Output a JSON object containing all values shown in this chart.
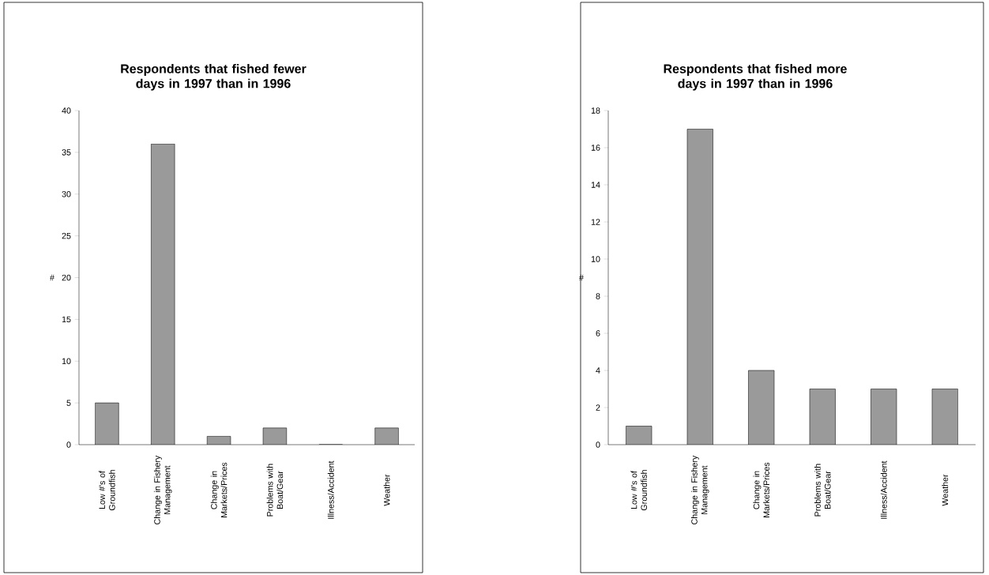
{
  "chart_data": [
    {
      "type": "bar",
      "title": "Respondents that fished fewer days in 1997 than in 1996",
      "ylabel": "#",
      "categories": [
        "Low #'s of Groundfish",
        "Change in Fishery Management",
        "Change in Markets/Prices",
        "Problems with Boat/Gear",
        "Illness/Accident",
        "Weather"
      ],
      "values": [
        5,
        36,
        1,
        2,
        0,
        2
      ],
      "color": "#9a9a9a",
      "ylim": [
        0,
        40
      ],
      "yticks": [
        0,
        5,
        10,
        15,
        20,
        25,
        30,
        35,
        40
      ]
    },
    {
      "type": "bar",
      "title": "Respondents that fished more days in 1997 than in 1996",
      "ylabel": "#",
      "categories": [
        "Low #'s of Groundfish",
        "Change in Fishery Management",
        "Change in Markets/Prices",
        "Problems with Boat/Gear",
        "Illness/Accident",
        "Weather"
      ],
      "values": [
        1,
        17,
        4,
        3,
        3,
        3
      ],
      "color": "#9a9a9a",
      "ylim": [
        0,
        18
      ],
      "yticks": [
        0,
        2,
        4,
        6,
        8,
        10,
        12,
        14,
        16,
        18
      ]
    }
  ]
}
